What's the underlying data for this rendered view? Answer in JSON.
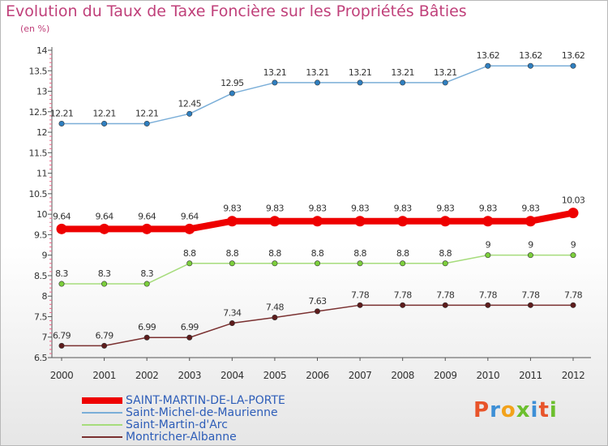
{
  "header": {
    "title": "Evolution du Taux de Taxe Foncière sur les Propriétés Bâties",
    "subtitle": "(en %)"
  },
  "logo": {
    "text": "Proxiti",
    "colors": [
      "#e8542a",
      "#3d8fd6",
      "#f2a21b",
      "#6cbf2e",
      "#3d8fd6",
      "#e8542a",
      "#6cbf2e"
    ]
  },
  "chart_data": {
    "type": "line",
    "x": [
      "2000",
      "2001",
      "2002",
      "2003",
      "2004",
      "2005",
      "2006",
      "2007",
      "2008",
      "2009",
      "2010",
      "2011",
      "2012"
    ],
    "ylim": [
      6.5,
      14
    ],
    "yticks": [
      "6.5",
      "7",
      "7.5",
      "8",
      "8.5",
      "9",
      "9.5",
      "10",
      "10.5",
      "11",
      "11.5",
      "12",
      "12.5",
      "13",
      "13.5",
      "14"
    ],
    "grid": false,
    "series": [
      {
        "name": "SAINT-MARTIN-DE-LA-PORTE",
        "values": [
          9.64,
          9.64,
          9.64,
          9.64,
          9.83,
          9.83,
          9.83,
          9.83,
          9.83,
          9.83,
          9.83,
          9.83,
          10.03
        ],
        "labels": [
          "9.64",
          "9.64",
          "9.64",
          "9.64",
          "9.83",
          "9.83",
          "9.83",
          "9.83",
          "9.83",
          "9.83",
          "9.83",
          "9.83",
          "10.03"
        ],
        "color": "#ee0000",
        "marker": "#ee0000",
        "emphasis": true
      },
      {
        "name": "Saint-Michel-de-Maurienne",
        "values": [
          12.21,
          12.21,
          12.21,
          12.45,
          12.95,
          13.21,
          13.21,
          13.21,
          13.21,
          13.21,
          13.62,
          13.62,
          13.62
        ],
        "labels": [
          "12.21",
          "12.21",
          "12.21",
          "12.45",
          "12.95",
          "13.21",
          "13.21",
          "13.21",
          "13.21",
          "13.21",
          "13.62",
          "13.62",
          "13.62"
        ],
        "color": "#7aaed8",
        "marker": "#2f7fc0",
        "emphasis": false
      },
      {
        "name": "Saint-Martin-d'Arc",
        "values": [
          8.3,
          8.3,
          8.3,
          8.8,
          8.8,
          8.8,
          8.8,
          8.8,
          8.8,
          8.8,
          9,
          9,
          9
        ],
        "labels": [
          "8.3",
          "8.3",
          "8.3",
          "8.8",
          "8.8",
          "8.8",
          "8.8",
          "8.8",
          "8.8",
          "8.8",
          "9",
          "9",
          "9"
        ],
        "color": "#a6dc7c",
        "marker": "#7ccf3c",
        "emphasis": false
      },
      {
        "name": "Montricher-Albanne",
        "values": [
          6.79,
          6.79,
          6.99,
          6.99,
          7.34,
          7.48,
          7.63,
          7.78,
          7.78,
          7.78,
          7.78,
          7.78,
          7.78
        ],
        "labels": [
          "6.79",
          "6.79",
          "6.99",
          "6.99",
          "7.34",
          "7.48",
          "7.63",
          "7.78",
          "7.78",
          "7.78",
          "7.78",
          "7.78",
          "7.78"
        ],
        "color": "#7a3030",
        "marker": "#5e1c1c",
        "emphasis": false
      }
    ],
    "legend": "bottom-left"
  }
}
